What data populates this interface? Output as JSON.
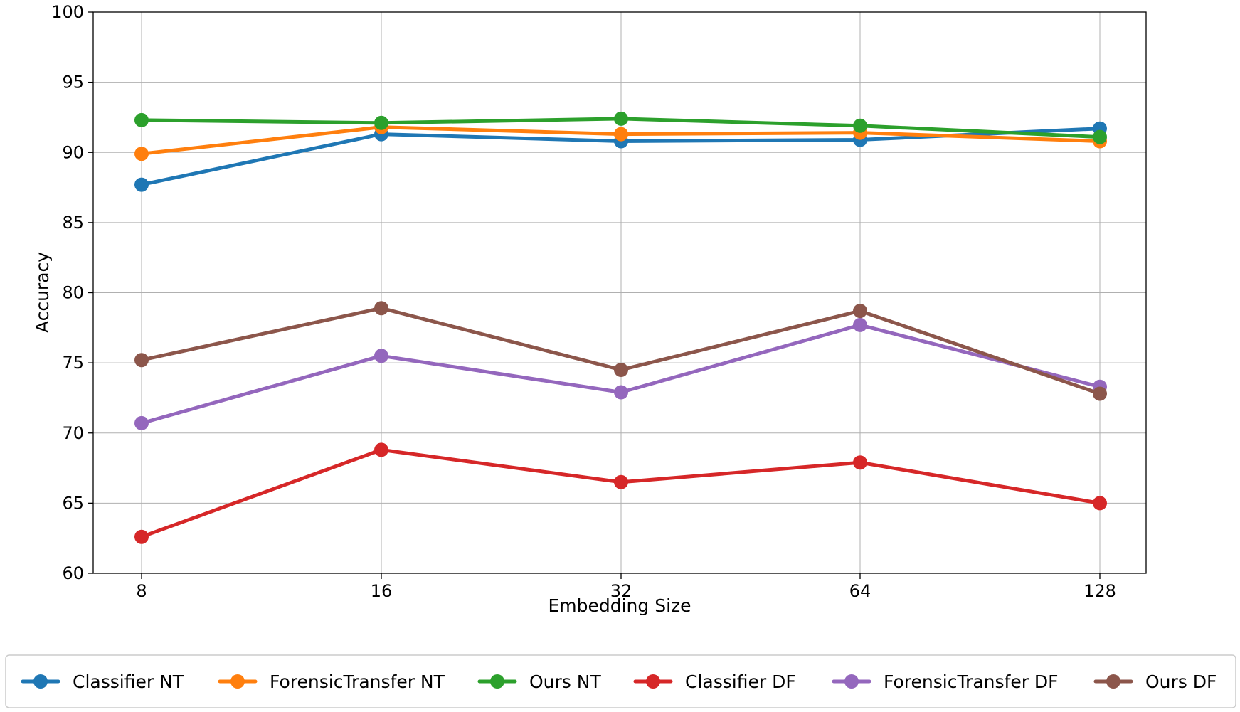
{
  "chart_data": {
    "type": "line",
    "xlabel": "Embedding Size",
    "ylabel": "Accuracy",
    "categories": [
      "8",
      "16",
      "32",
      "64",
      "128"
    ],
    "ylim": [
      60,
      100
    ],
    "yticks": [
      "60",
      "65",
      "70",
      "75",
      "80",
      "85",
      "90",
      "95",
      "100"
    ],
    "grid": true,
    "legend_position": "bottom",
    "series": [
      {
        "name": "Classifier NT",
        "color": "#1f77b4",
        "values": [
          87.7,
          91.3,
          90.8,
          90.9,
          91.7
        ]
      },
      {
        "name": "ForensicTransfer NT",
        "color": "#ff7f0e",
        "values": [
          89.9,
          91.8,
          91.3,
          91.4,
          90.8
        ]
      },
      {
        "name": "Ours NT",
        "color": "#2ca02c",
        "values": [
          92.3,
          92.1,
          92.4,
          91.9,
          91.1
        ]
      },
      {
        "name": "Classifier DF",
        "color": "#d62728",
        "values": [
          62.6,
          68.8,
          66.5,
          67.9,
          65.0
        ]
      },
      {
        "name": "ForensicTransfer DF",
        "color": "#9467bd",
        "values": [
          70.7,
          75.5,
          72.9,
          77.7,
          73.3
        ]
      },
      {
        "name": "Ours DF",
        "color": "#8c564b",
        "values": [
          75.2,
          78.9,
          74.5,
          78.7,
          72.8
        ]
      }
    ]
  }
}
